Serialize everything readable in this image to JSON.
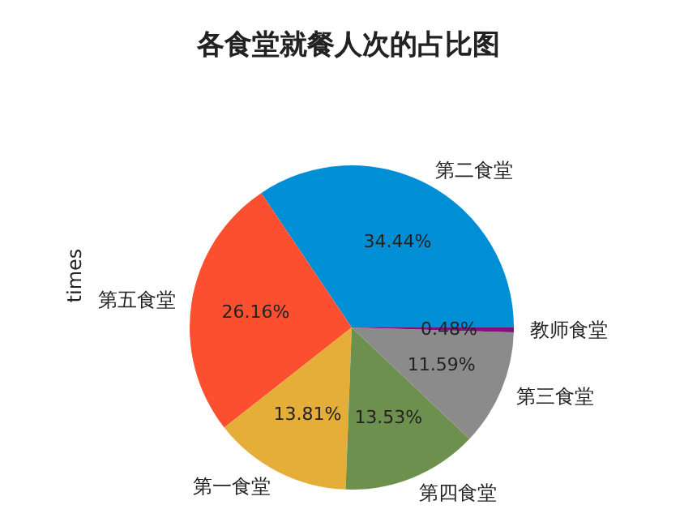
{
  "chart_data": {
    "type": "pie",
    "title": "各食堂就餐人次的占比图",
    "ylabel": "times",
    "categories": [
      "第二食堂",
      "第五食堂",
      "第一食堂",
      "第四食堂",
      "第三食堂",
      "教师食堂"
    ],
    "values": [
      34.44,
      26.16,
      13.81,
      13.53,
      11.59,
      0.48
    ],
    "value_labels": [
      "34.44%",
      "26.16%",
      "13.81%",
      "13.53%",
      "11.59%",
      "0.48%"
    ],
    "colors": [
      "#008fd5",
      "#fc4f30",
      "#e5ae38",
      "#6d904f",
      "#8b8b8b",
      "#810f7c"
    ]
  }
}
